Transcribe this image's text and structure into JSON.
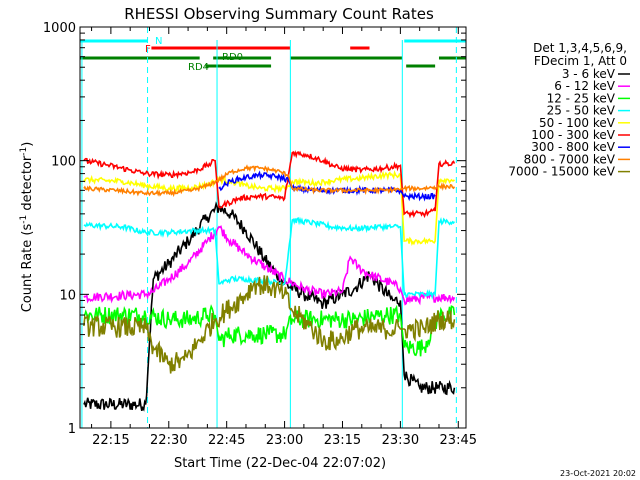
{
  "chart_data": {
    "type": "line",
    "title": "RHESSI Observing Summary Count Rates",
    "xlabel": "Start Time (22-Dec-04 22:07:02)",
    "ylabel_main": "Count Rate (s",
    "ylabel_sup1": "-1",
    "ylabel_mid": " detector",
    "ylabel_sup2": "-1",
    "ylabel_end": ")",
    "yscale": "log",
    "ylim": [
      1,
      1000
    ],
    "xlim_minutes": [
      7,
      107
    ],
    "x_ticks": [
      {
        "m": 15,
        "label": "22:15"
      },
      {
        "m": 30,
        "label": "22:30"
      },
      {
        "m": 45,
        "label": "22:45"
      },
      {
        "m": 60,
        "label": "23:00"
      },
      {
        "m": 75,
        "label": "23:15"
      },
      {
        "m": 90,
        "label": "23:30"
      },
      {
        "m": 105,
        "label": "23:45"
      }
    ],
    "y_ticks": [
      {
        "v": 1,
        "label": "1"
      },
      {
        "v": 10,
        "label": "10"
      },
      {
        "v": 100,
        "label": "100"
      },
      {
        "v": 1000,
        "label": "1000"
      }
    ],
    "legend_header": [
      "Det 1,3,4,5,6,9,",
      "FDecim 1, Att 0"
    ],
    "footer_date": "23-Oct-2021 20:02",
    "flag_labels": {
      "N": "N",
      "F": "F",
      "RD0": "RD0",
      "RD4": "RD4"
    },
    "flag_colors": {
      "N": "#00ffff",
      "F": "#ff0000",
      "RD0": "#008000",
      "RD4": "#008000"
    },
    "flags": {
      "N": [
        [
          7,
          24.5
        ],
        [
          91,
          107
        ]
      ],
      "F": [
        [
          25.5,
          61.5
        ],
        [
          77,
          82
        ]
      ],
      "RD0": [
        [
          7,
          38
        ],
        [
          41.5,
          56.5
        ],
        [
          61.5,
          90.5
        ],
        [
          100,
          107
        ]
      ],
      "RD4": [
        [
          39.5,
          56.5
        ],
        [
          91.5,
          99
        ]
      ]
    },
    "gap_lines_cyan_dashed": [
      24.5,
      104.5
    ],
    "gap_lines_cyan_solid": [
      7.5,
      42.5,
      61.5,
      90.5
    ],
    "series": [
      {
        "name": "3 - 6 keV",
        "color": "#000000",
        "points": [
          [
            8,
            1.5
          ],
          [
            24,
            1.5
          ],
          [
            26,
            13
          ],
          [
            30,
            17
          ],
          [
            35,
            25
          ],
          [
            40,
            38
          ],
          [
            43,
            45
          ],
          [
            46,
            40
          ],
          [
            50,
            30
          ],
          [
            55,
            18
          ],
          [
            60,
            12
          ],
          [
            65,
            10
          ],
          [
            70,
            8.5
          ],
          [
            75,
            10
          ],
          [
            78,
            11
          ],
          [
            82,
            14
          ],
          [
            88,
            9
          ],
          [
            90,
            9
          ],
          [
            91,
            2.5
          ],
          [
            95,
            2
          ],
          [
            100,
            2
          ],
          [
            104,
            2
          ]
        ]
      },
      {
        "name": "6 - 12 keV",
        "color": "#ff00ff",
        "points": [
          [
            8,
            9.5
          ],
          [
            24,
            10
          ],
          [
            26,
            10.5
          ],
          [
            30,
            13
          ],
          [
            35,
            17
          ],
          [
            40,
            25
          ],
          [
            43,
            32
          ],
          [
            46,
            25
          ],
          [
            50,
            20
          ],
          [
            55,
            16
          ],
          [
            60,
            13
          ],
          [
            65,
            11
          ],
          [
            70,
            10
          ],
          [
            75,
            10.5
          ],
          [
            77,
            19
          ],
          [
            79,
            16
          ],
          [
            82,
            14
          ],
          [
            88,
            12
          ],
          [
            90,
            11
          ],
          [
            91,
            9
          ],
          [
            97,
            9.5
          ],
          [
            104,
            9.5
          ]
        ]
      },
      {
        "name": "12 - 25 keV",
        "color": "#00ff00",
        "points": [
          [
            8,
            7
          ],
          [
            24,
            7
          ],
          [
            30,
            6.5
          ],
          [
            36,
            6.5
          ],
          [
            40,
            7
          ],
          [
            42,
            7
          ],
          [
            43,
            4.5
          ],
          [
            46,
            5
          ],
          [
            52,
            5
          ],
          [
            56,
            5
          ],
          [
            60,
            5
          ],
          [
            62,
            6.5
          ],
          [
            70,
            6.5
          ],
          [
            78,
            6.5
          ],
          [
            86,
            7
          ],
          [
            90,
            7
          ],
          [
            91,
            4
          ],
          [
            96,
            4
          ],
          [
            100,
            7
          ],
          [
            104,
            7
          ]
        ]
      },
      {
        "name": "25 - 50 keV",
        "color": "#00ffff",
        "points": [
          [
            8,
            33
          ],
          [
            18,
            32
          ],
          [
            24,
            29
          ],
          [
            30,
            29
          ],
          [
            36,
            30
          ],
          [
            40,
            30
          ],
          [
            42,
            30
          ],
          [
            43,
            12
          ],
          [
            46,
            13
          ],
          [
            50,
            13
          ],
          [
            56,
            12.5
          ],
          [
            60,
            12
          ],
          [
            62,
            36
          ],
          [
            68,
            34
          ],
          [
            72,
            32
          ],
          [
            78,
            31
          ],
          [
            84,
            32
          ],
          [
            88,
            32
          ],
          [
            90,
            32
          ],
          [
            91,
            10
          ],
          [
            96,
            10
          ],
          [
            99,
            10
          ],
          [
            100,
            35
          ],
          [
            104,
            35
          ]
        ]
      },
      {
        "name": "50 - 100 keV",
        "color": "#ffff00",
        "points": [
          [
            8,
            72
          ],
          [
            18,
            70
          ],
          [
            24,
            65
          ],
          [
            30,
            62
          ],
          [
            36,
            63
          ],
          [
            40,
            66
          ],
          [
            43,
            72
          ],
          [
            46,
            70
          ],
          [
            50,
            65
          ],
          [
            54,
            62
          ],
          [
            58,
            62
          ],
          [
            60,
            62
          ],
          [
            62,
            70
          ],
          [
            68,
            68
          ],
          [
            74,
            72
          ],
          [
            80,
            74
          ],
          [
            86,
            78
          ],
          [
            90,
            78
          ],
          [
            91,
            25
          ],
          [
            96,
            25
          ],
          [
            99,
            25
          ],
          [
            100,
            72
          ],
          [
            104,
            72
          ]
        ]
      },
      {
        "name": "100 - 300 keV",
        "color": "#ff0000",
        "points": [
          [
            8,
            100
          ],
          [
            14,
            93
          ],
          [
            20,
            85
          ],
          [
            24,
            80
          ],
          [
            30,
            78
          ],
          [
            36,
            82
          ],
          [
            40,
            92
          ],
          [
            42,
            100
          ],
          [
            43,
            45
          ],
          [
            48,
            52
          ],
          [
            52,
            54
          ],
          [
            56,
            54
          ],
          [
            60,
            52
          ],
          [
            62,
            115
          ],
          [
            66,
            110
          ],
          [
            70,
            100
          ],
          [
            74,
            88
          ],
          [
            80,
            85
          ],
          [
            86,
            88
          ],
          [
            90,
            92
          ],
          [
            91,
            40
          ],
          [
            96,
            40
          ],
          [
            99,
            42
          ],
          [
            100,
            95
          ],
          [
            104,
            95
          ]
        ]
      },
      {
        "name": "300 - 800 keV",
        "color": "#0000ff",
        "points": [
          [
            43,
            62
          ],
          [
            46,
            70
          ],
          [
            50,
            75
          ],
          [
            54,
            78
          ],
          [
            58,
            76
          ],
          [
            61,
            72
          ],
          [
            62,
            62
          ],
          [
            68,
            60
          ],
          [
            74,
            60
          ],
          [
            80,
            60
          ],
          [
            86,
            60
          ],
          [
            90,
            60
          ],
          [
            91,
            54
          ],
          [
            96,
            54
          ],
          [
            99,
            54
          ]
        ]
      },
      {
        "name": "800 - 7000 keV",
        "color": "#ff8000",
        "points": [
          [
            8,
            62
          ],
          [
            16,
            60
          ],
          [
            24,
            57
          ],
          [
            30,
            57
          ],
          [
            36,
            60
          ],
          [
            40,
            65
          ],
          [
            43,
            72
          ],
          [
            46,
            82
          ],
          [
            50,
            88
          ],
          [
            54,
            88
          ],
          [
            58,
            84
          ],
          [
            61,
            78
          ],
          [
            62,
            62
          ],
          [
            68,
            60
          ],
          [
            74,
            60
          ],
          [
            80,
            60
          ],
          [
            86,
            60
          ],
          [
            90,
            61
          ],
          [
            91,
            62
          ],
          [
            96,
            62
          ],
          [
            100,
            64
          ],
          [
            104,
            64
          ]
        ]
      },
      {
        "name": "7000 - 15000 keV",
        "color": "#808000",
        "points": [
          [
            8,
            5.8
          ],
          [
            24,
            5.6
          ],
          [
            26,
            4
          ],
          [
            30,
            3
          ],
          [
            34,
            3.2
          ],
          [
            38,
            4.5
          ],
          [
            42,
            6.5
          ],
          [
            46,
            8
          ],
          [
            50,
            10
          ],
          [
            52,
            12
          ],
          [
            56,
            11.5
          ],
          [
            60,
            10
          ],
          [
            62,
            7.5
          ],
          [
            66,
            6
          ],
          [
            70,
            4.5
          ],
          [
            74,
            4.5
          ],
          [
            78,
            5.5
          ],
          [
            82,
            5.5
          ],
          [
            86,
            5.5
          ],
          [
            90,
            5.5
          ],
          [
            91,
            5.5
          ],
          [
            96,
            5.5
          ],
          [
            100,
            6.5
          ],
          [
            104,
            6.5
          ]
        ]
      }
    ]
  }
}
